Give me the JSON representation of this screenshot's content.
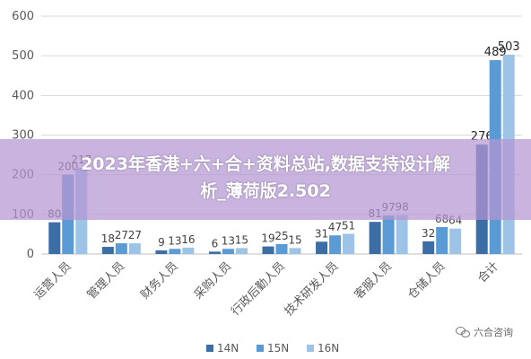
{
  "chart_data": {
    "type": "bar",
    "categories": [
      "运营人员",
      "管理人员",
      "财务人员",
      "采购人员",
      "行政后勤人员",
      "技术研发人员",
      "客服人员",
      "仓储人员",
      "合计"
    ],
    "series": [
      {
        "name": "14N",
        "color": "#3a6ea5",
        "values": [
          80,
          18,
          9,
          6,
          19,
          31,
          81,
          32,
          276
        ]
      },
      {
        "name": "15N",
        "color": "#5b9bd5",
        "values": [
          200,
          27,
          13,
          13,
          25,
          47,
          97,
          68,
          489
        ]
      },
      {
        "name": "16N",
        "color": "#9dc3e6",
        "values": [
          217,
          27,
          16,
          15,
          15,
          51,
          98,
          64,
          503
        ]
      }
    ],
    "ylim": [
      0,
      600
    ],
    "yticks": [
      0,
      100,
      200,
      300,
      400,
      500,
      600
    ],
    "grid": true,
    "legend": "bottom",
    "title": "",
    "xlabel": "",
    "ylabel": ""
  },
  "banner": {
    "line1": "2023年香港+六+合+资料总站,数据支持设计解",
    "line2": "析_薄荷版2.502"
  },
  "watermark": {
    "text": "六合咨询",
    "icon": "wechat-icon"
  }
}
